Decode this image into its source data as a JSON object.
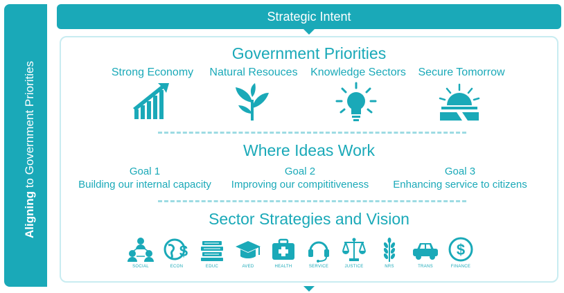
{
  "sidebar": {
    "bold": "Aligning",
    "rest": " to Government Priorities"
  },
  "header": {
    "title": "Strategic Intent"
  },
  "priorities": {
    "title": "Government Priorities",
    "items": [
      {
        "label": "Strong Economy",
        "icon": "bar-chart-arrow-icon"
      },
      {
        "label": "Natural Resouces",
        "icon": "plant-icon"
      },
      {
        "label": "Knowledge Sectors",
        "icon": "lightbulb-icon"
      },
      {
        "label": "Secure Tomorrow",
        "icon": "sunrise-icon"
      }
    ]
  },
  "ideas": {
    "title": "Where Ideas Work",
    "goals": [
      {
        "title": "Goal 1",
        "text": "Building our internal capacity"
      },
      {
        "title": "Goal 2",
        "text": "Improving our compititiveness"
      },
      {
        "title": "Goal 3",
        "text": "Enhancing service to citizens"
      }
    ]
  },
  "sectors": {
    "title": "Sector Strategies and Vision",
    "items": [
      {
        "label": "SOCIAL",
        "icon": "people-network-icon"
      },
      {
        "label": "ECON",
        "icon": "globe-dollar-icon"
      },
      {
        "label": "EDUC",
        "icon": "books-icon"
      },
      {
        "label": "AVED",
        "icon": "graduation-cap-icon"
      },
      {
        "label": "HEALTH",
        "icon": "medical-kit-icon"
      },
      {
        "label": "SERVICE",
        "icon": "headset-icon"
      },
      {
        "label": "JUSTICE",
        "icon": "scales-icon"
      },
      {
        "label": "NRS",
        "icon": "wheat-icon"
      },
      {
        "label": "TRANS",
        "icon": "car-icon"
      },
      {
        "label": "FINANCE",
        "icon": "dollar-coin-icon"
      }
    ]
  },
  "colors": {
    "accent": "#1aa9b8",
    "light": "#c8ecf1"
  }
}
